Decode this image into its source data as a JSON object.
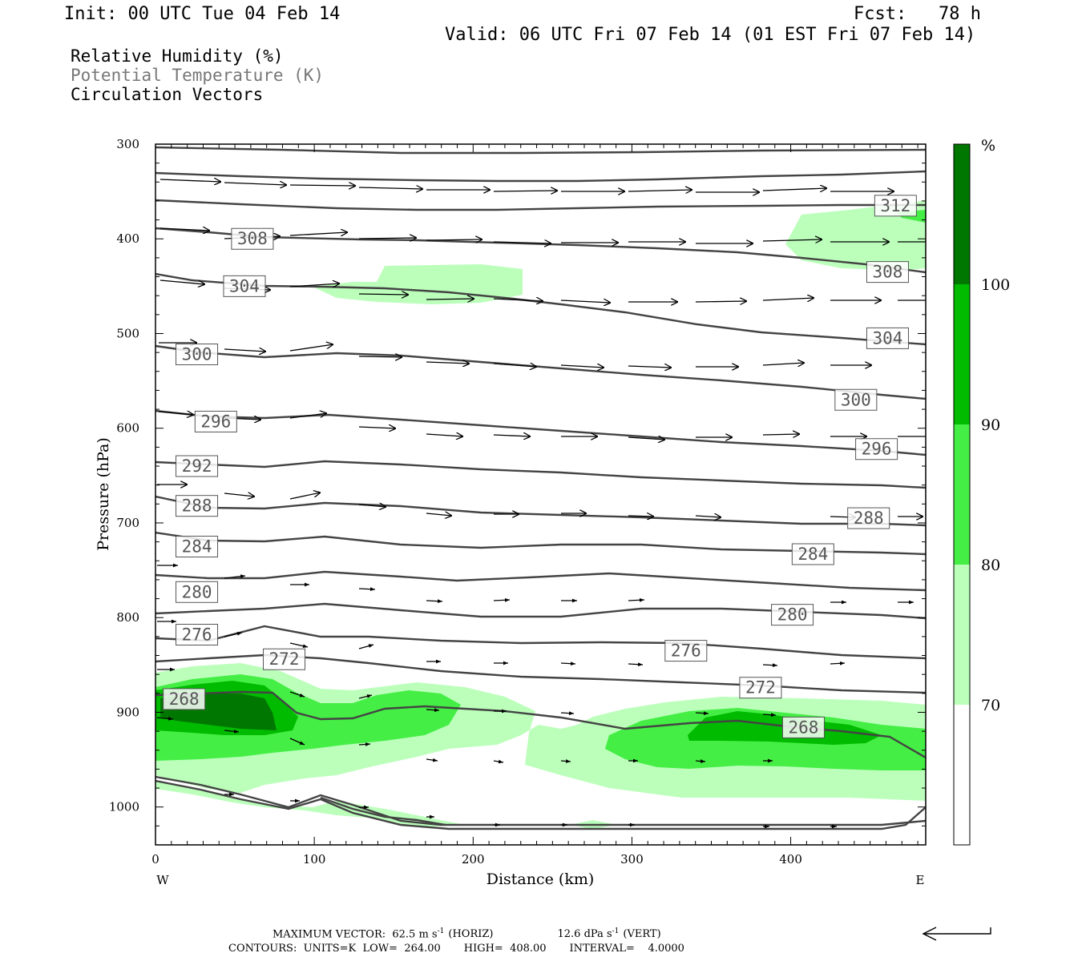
{
  "header": {
    "init": "Init: 00 UTC Tue 04 Feb 14",
    "fcst": "Fcst:   78 h",
    "valid": "Valid: 06 UTC Fri 07 Feb 14 (01 EST Fri 07 Feb 14)"
  },
  "fields": {
    "rh": "Relative Humidity (%)",
    "theta": "Potential Temperature (K)",
    "vectors": "Circulation Vectors"
  },
  "footer": {
    "maxvec_prefix": "MAXIMUM VECTOR:  62.5 m s",
    "maxvec_horiz": "(HORIZ)",
    "maxvec_vert_val": "12.6 dPa s",
    "maxvec_vert": "(VERT)",
    "sup": "-1",
    "contours": "CONTOURS:  UNITS=K  LOW=  264.00       HIGH=  408.00       INTERVAL=    4.0000"
  },
  "colors": {
    "rh70": "#bbffbb",
    "rh80": "#44ee44",
    "rh90": "#00bb00",
    "rh100": "#007700",
    "contour": "#444444"
  },
  "chart_data": {
    "type": "contour",
    "xlabel": "Distance (km)",
    "ylabel": "Pressure (hPa)",
    "xlim": [
      0,
      485
    ],
    "ylim": [
      1040,
      300
    ],
    "x_ticks": [
      "0",
      "100",
      "200",
      "300",
      "400"
    ],
    "y_ticks": [
      "300",
      "400",
      "500",
      "600",
      "700",
      "800",
      "900",
      "1000"
    ],
    "x_ends": {
      "west": "W",
      "east": "E"
    },
    "colorbar": {
      "unit": "%",
      "levels": [
        "70",
        "80",
        "90",
        "100"
      ]
    },
    "theta_labels": [
      {
        "text": "312",
        "x": 465,
        "p": 365
      },
      {
        "text": "308",
        "x": 60,
        "p": 400
      },
      {
        "text": "308",
        "x": 460,
        "p": 435
      },
      {
        "text": "304",
        "x": 55,
        "p": 450
      },
      {
        "text": "304",
        "x": 460,
        "p": 505
      },
      {
        "text": "300",
        "x": 25,
        "p": 522
      },
      {
        "text": "300",
        "x": 440,
        "p": 570
      },
      {
        "text": "296",
        "x": 37,
        "p": 593
      },
      {
        "text": "296",
        "x": 453,
        "p": 622
      },
      {
        "text": "292",
        "x": 25,
        "p": 640
      },
      {
        "text": "288",
        "x": 25,
        "p": 682
      },
      {
        "text": "288",
        "x": 448,
        "p": 695
      },
      {
        "text": "284",
        "x": 25,
        "p": 725
      },
      {
        "text": "284",
        "x": 413,
        "p": 733
      },
      {
        "text": "280",
        "x": 25,
        "p": 773
      },
      {
        "text": "280",
        "x": 400,
        "p": 797
      },
      {
        "text": "276",
        "x": 25,
        "p": 818
      },
      {
        "text": "276",
        "x": 333,
        "p": 835
      },
      {
        "text": "272",
        "x": 80,
        "p": 844
      },
      {
        "text": "272",
        "x": 380,
        "p": 874
      },
      {
        "text": "268",
        "x": 17,
        "p": 886
      },
      {
        "text": "268",
        "x": 407,
        "p": 916
      }
    ]
  }
}
